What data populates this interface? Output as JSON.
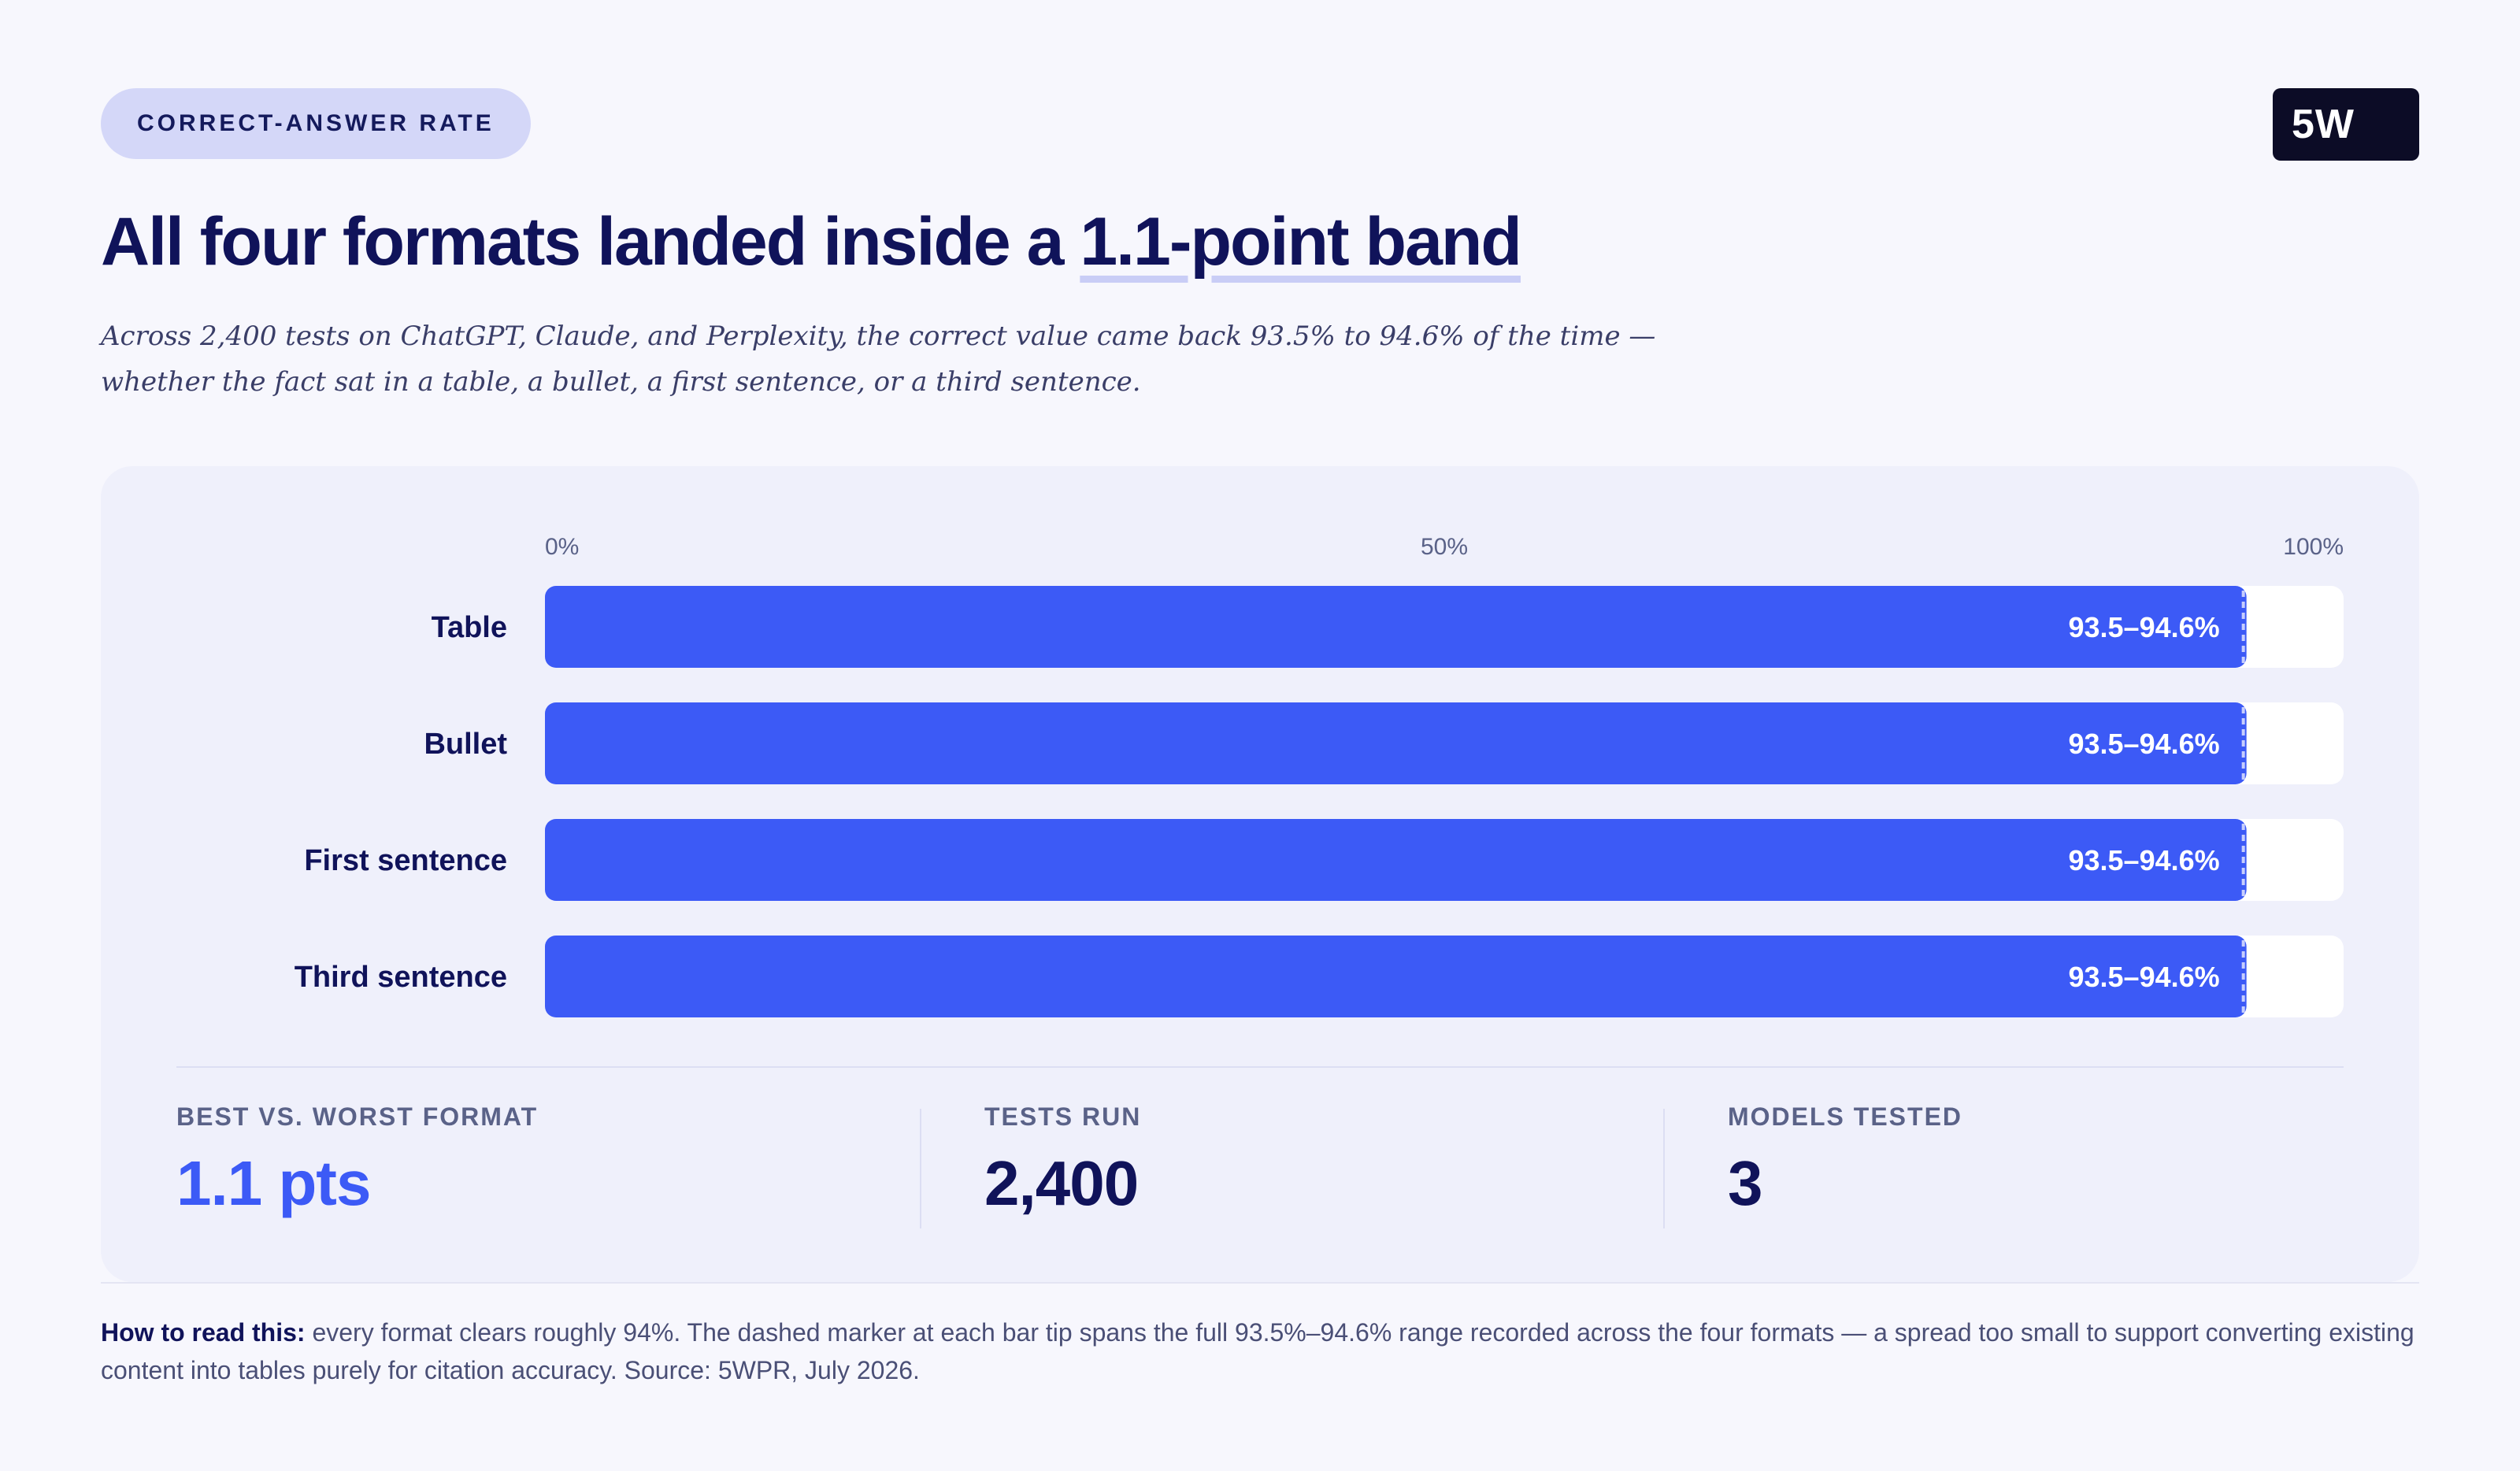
{
  "badge": "CORRECT-ANSWER RATE",
  "logo": "5W",
  "headline": {
    "prefix": "All four formats landed inside a ",
    "highlight": "1.1-point band"
  },
  "subtitle": "Across 2,400 tests on ChatGPT, Claude, and Perplexity, the correct value came back 93.5% to 94.6% of the time — whether the fact sat in a table, a bullet, a first sentence, or a third sentence.",
  "chart_data": {
    "type": "bar",
    "orientation": "horizontal",
    "categories": [
      "Table",
      "Bullet",
      "First sentence",
      "Third sentence"
    ],
    "values": [
      94,
      94,
      94,
      94
    ],
    "range_low": [
      93.5,
      93.5,
      93.5,
      93.5
    ],
    "range_high": [
      94.6,
      94.6,
      94.6,
      94.6
    ],
    "value_labels": [
      "93.5–94.6%",
      "93.5–94.6%",
      "93.5–94.6%",
      "93.5–94.6%"
    ],
    "xlim": [
      0,
      100
    ],
    "x_ticks": [
      0,
      50,
      100
    ],
    "x_tick_labels": [
      "0%",
      "50%",
      "100%"
    ],
    "bar_color": "#3c5af6",
    "track_color": "#ffffff",
    "label_color": "#10135a"
  },
  "stats": [
    {
      "label": "BEST VS. WORST FORMAT",
      "value": "1.1 pts"
    },
    {
      "label": "TESTS RUN",
      "value": "2,400"
    },
    {
      "label": "MODELS TESTED",
      "value": "3"
    }
  ],
  "note": {
    "lead": "How to read this:",
    "body": " every format clears roughly 94%. The dashed marker at each bar tip spans the full 93.5%–94.6% range recorded across the four formats — a spread too small to support converting existing content into tables purely for citation accuracy. Source: 5WPR, July 2026."
  }
}
